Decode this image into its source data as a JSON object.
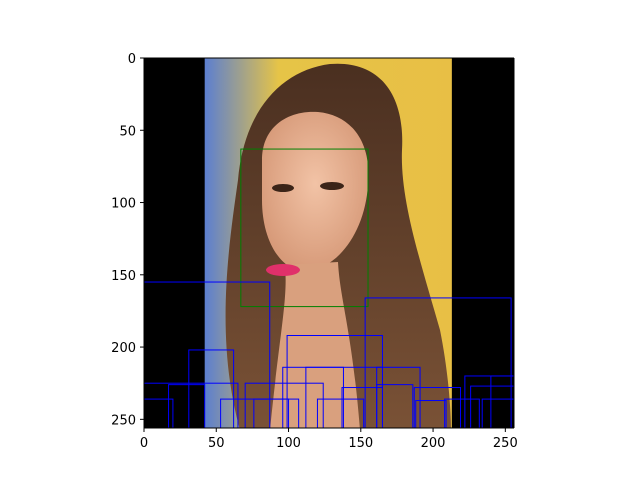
{
  "chart_data": {
    "type": "scatter",
    "title": "",
    "xlabel": "",
    "ylabel": "",
    "xlim": [
      0,
      256
    ],
    "ylim": [
      256,
      0
    ],
    "x_ticks": [
      0,
      50,
      100,
      150,
      200,
      250
    ],
    "y_ticks": [
      0,
      50,
      100,
      150,
      200,
      250
    ],
    "y_inverted": true,
    "grid": false,
    "background_image": {
      "content": "portrait photograph of a woman with long brown hair, centered with black side padding",
      "image_x_range": [
        0,
        256
      ],
      "photo_x_range": [
        42,
        213
      ],
      "padding_color": "#000000"
    },
    "series": [
      {
        "style": "box",
        "color": "#008000",
        "boxes": [
          {
            "x0": 67,
            "y0": 63,
            "x1": 155,
            "y1": 172
          }
        ]
      },
      {
        "style": "box",
        "color": "#0000ff",
        "boxes": [
          {
            "x0": 0,
            "y0": 155,
            "x1": 87,
            "y1": 256
          },
          {
            "x0": 153,
            "y0": 166,
            "x1": 254,
            "y1": 256
          },
          {
            "x0": 99,
            "y0": 192,
            "x1": 165,
            "y1": 256
          },
          {
            "x0": 31,
            "y0": 202,
            "x1": 62,
            "y1": 256
          },
          {
            "x0": 0,
            "y0": 225,
            "x1": 65,
            "y1": 256
          },
          {
            "x0": 17,
            "y0": 226,
            "x1": 42,
            "y1": 256
          },
          {
            "x0": 0,
            "y0": 236,
            "x1": 20,
            "y1": 256
          },
          {
            "x0": 70,
            "y0": 225,
            "x1": 124,
            "y1": 256
          },
          {
            "x0": 96,
            "y0": 214,
            "x1": 138,
            "y1": 256
          },
          {
            "x0": 112,
            "y0": 214,
            "x1": 165,
            "y1": 256
          },
          {
            "x0": 137,
            "y0": 228,
            "x1": 165,
            "y1": 256
          },
          {
            "x0": 161,
            "y0": 214,
            "x1": 191,
            "y1": 256
          },
          {
            "x0": 161,
            "y0": 226,
            "x1": 186,
            "y1": 256
          },
          {
            "x0": 187,
            "y0": 228,
            "x1": 219,
            "y1": 256
          },
          {
            "x0": 188,
            "y0": 237,
            "x1": 209,
            "y1": 256
          },
          {
            "x0": 53,
            "y0": 236,
            "x1": 107,
            "y1": 256
          },
          {
            "x0": 76,
            "y0": 236,
            "x1": 100,
            "y1": 256
          },
          {
            "x0": 222,
            "y0": 220,
            "x1": 256,
            "y1": 256
          },
          {
            "x0": 226,
            "y0": 227,
            "x1": 256,
            "y1": 256
          },
          {
            "x0": 240,
            "y0": 220,
            "x1": 256,
            "y1": 256
          },
          {
            "x0": 234,
            "y0": 236,
            "x1": 256,
            "y1": 256
          },
          {
            "x0": 120,
            "y0": 236,
            "x1": 152,
            "y1": 256
          },
          {
            "x0": 208,
            "y0": 236,
            "x1": 232,
            "y1": 256
          }
        ]
      }
    ]
  }
}
